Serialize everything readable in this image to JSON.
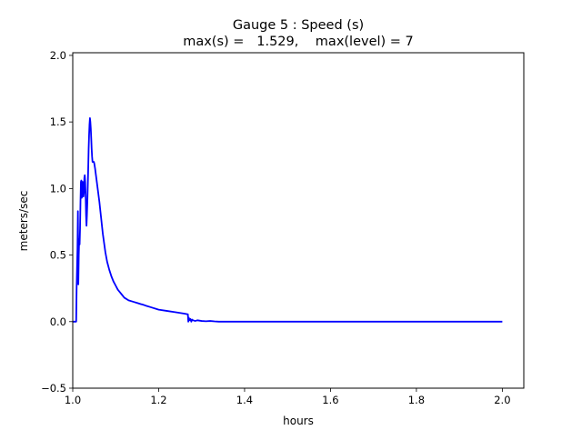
{
  "chart_data": {
    "type": "line",
    "title_line1": "Gauge 5 : Speed (s)",
    "title_line2": "max(s) =   1.529,    max(level) = 7",
    "xlabel": "hours",
    "ylabel": "meters/sec",
    "xlim": [
      1.0,
      2.05
    ],
    "ylim": [
      -0.5,
      2.02
    ],
    "x_ticks": [
      1.0,
      1.2,
      1.4,
      1.6,
      1.8,
      2.0
    ],
    "x_tick_labels": [
      "1.0",
      "1.2",
      "1.4",
      "1.6",
      "1.8",
      "2.0"
    ],
    "y_ticks": [
      -0.5,
      0.0,
      0.5,
      1.0,
      1.5,
      2.0
    ],
    "y_tick_labels": [
      "−0.5",
      "0.0",
      "0.5",
      "1.0",
      "1.5",
      "2.0"
    ],
    "grid": false,
    "line_color": "#0000ff",
    "series": [
      {
        "x": [
          1.0,
          1.007,
          1.008,
          1.009,
          1.01,
          1.011,
          1.012,
          1.0125,
          1.013,
          1.014,
          1.015,
          1.016,
          1.017,
          1.018,
          1.019,
          1.02,
          1.0205,
          1.021,
          1.022,
          1.023,
          1.024,
          1.025,
          1.026,
          1.027,
          1.028,
          1.029,
          1.03,
          1.031,
          1.032,
          1.033,
          1.034,
          1.035,
          1.036,
          1.037,
          1.038,
          1.039,
          1.04,
          1.041,
          1.042,
          1.043,
          1.044,
          1.045,
          1.046,
          1.047,
          1.048,
          1.049,
          1.05,
          1.052,
          1.054,
          1.056,
          1.058,
          1.06,
          1.062,
          1.064,
          1.066,
          1.068,
          1.07,
          1.073,
          1.076,
          1.08,
          1.085,
          1.09,
          1.095,
          1.1,
          1.105,
          1.11,
          1.115,
          1.12,
          1.13,
          1.14,
          1.15,
          1.16,
          1.161,
          1.17,
          1.18,
          1.2,
          1.22,
          1.24,
          1.26,
          1.268,
          1.269,
          1.27,
          1.272,
          1.274,
          1.276,
          1.278,
          1.28,
          1.285,
          1.29,
          1.3,
          1.31,
          1.32,
          1.33,
          1.34,
          1.4,
          1.5,
          1.6,
          1.7,
          1.8,
          1.9,
          2.0
        ],
        "y": [
          0.0,
          0.0,
          0.0,
          0.25,
          0.4,
          0.55,
          0.83,
          0.6,
          0.28,
          0.5,
          0.62,
          0.58,
          0.7,
          0.9,
          1.05,
          1.06,
          0.98,
          0.93,
          0.95,
          1.05,
          0.96,
          0.94,
          0.97,
          1.08,
          1.1,
          1.05,
          0.95,
          0.8,
          0.72,
          0.8,
          0.9,
          1.02,
          1.15,
          1.3,
          1.4,
          1.48,
          1.529,
          1.5,
          1.45,
          1.38,
          1.3,
          1.24,
          1.2,
          1.2,
          1.2,
          1.2,
          1.19,
          1.15,
          1.1,
          1.05,
          1.0,
          0.95,
          0.9,
          0.84,
          0.78,
          0.72,
          0.66,
          0.59,
          0.52,
          0.45,
          0.39,
          0.34,
          0.3,
          0.27,
          0.24,
          0.22,
          0.2,
          0.18,
          0.16,
          0.15,
          0.14,
          0.13,
          0.13,
          0.12,
          0.11,
          0.09,
          0.08,
          0.07,
          0.06,
          0.055,
          0.0,
          0.03,
          0.01,
          0.02,
          0.0,
          0.015,
          0.01,
          0.005,
          0.01,
          0.005,
          0.003,
          0.005,
          0.002,
          0.0,
          0.0,
          0.0,
          0.0,
          0.0,
          0.0,
          0.0,
          0.0
        ]
      }
    ]
  }
}
